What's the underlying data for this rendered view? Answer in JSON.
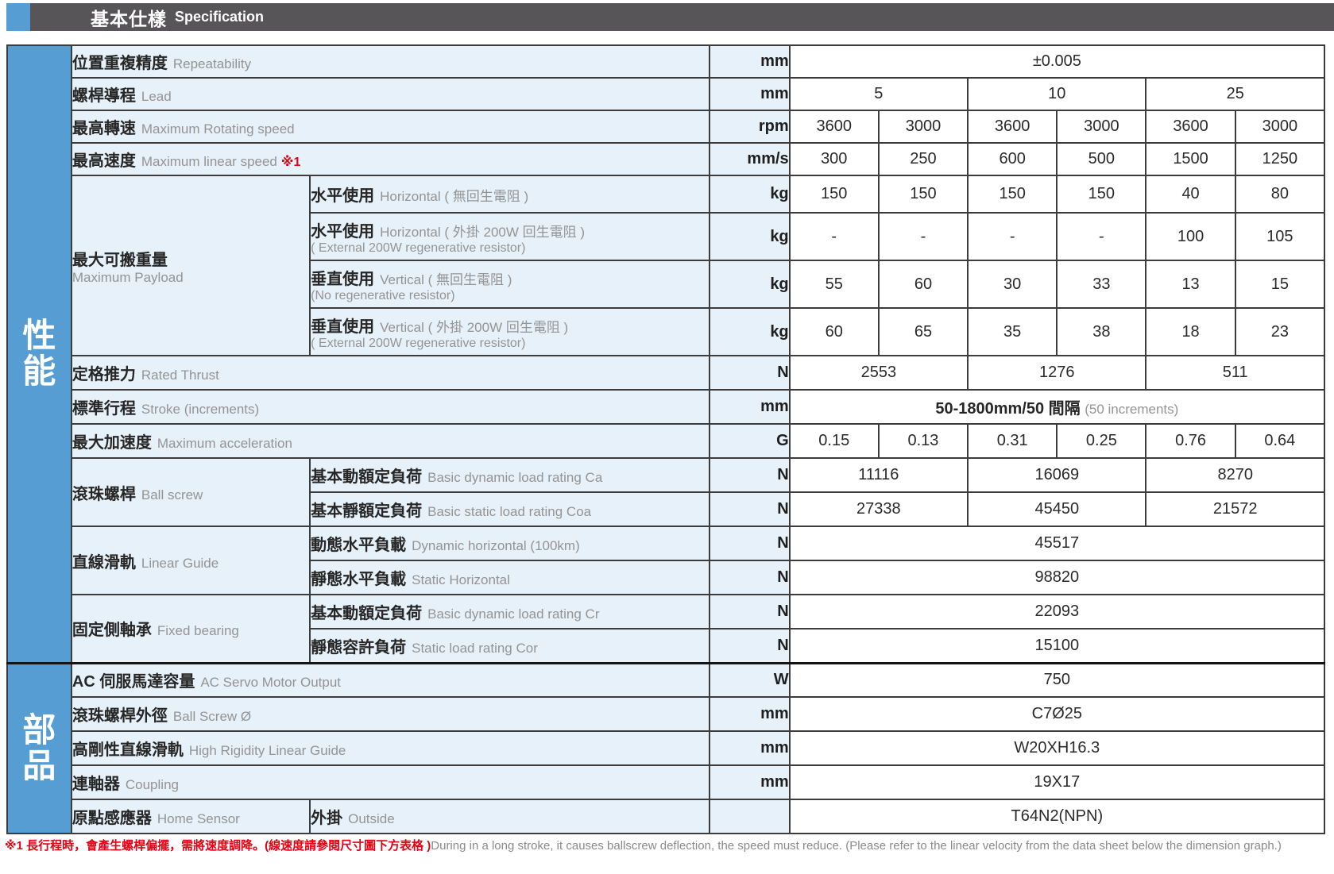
{
  "header": {
    "title_zh": "基本仕樣",
    "title_en": "Specification"
  },
  "side": {
    "performance": "性能",
    "parts": "部品"
  },
  "rows": {
    "repeatability": {
      "zh": "位置重複精度",
      "en": "Repeatability",
      "unit": "mm",
      "value": "±0.005"
    },
    "lead": {
      "zh": "螺桿導程",
      "en": "Lead",
      "unit": "mm",
      "values": [
        "5",
        "10",
        "25"
      ]
    },
    "max_rpm": {
      "zh": "最高轉速",
      "en": "Maximum Rotating speed",
      "unit": "rpm",
      "values": [
        "3600",
        "3000",
        "3600",
        "3000",
        "3600",
        "3000"
      ]
    },
    "max_speed": {
      "zh": "最高速度",
      "en": "Maximum linear speed",
      "note": "※1",
      "unit": "mm/s",
      "values": [
        "300",
        "250",
        "600",
        "500",
        "1500",
        "1250"
      ]
    },
    "payload": {
      "zh": "最大可搬重量",
      "en": "Maximum Payload",
      "sub": [
        {
          "zh": "水平使用",
          "en": "Horizontal ( 無回生電阻 )",
          "en2": "",
          "unit": "kg",
          "values": [
            "150",
            "150",
            "150",
            "150",
            "40",
            "80"
          ]
        },
        {
          "zh": "水平使用",
          "en": "Horizontal ( 外掛 200W 回生電阻 )",
          "en2": "( External 200W regenerative resistor)",
          "unit": "kg",
          "values": [
            "-",
            "-",
            "-",
            "-",
            "100",
            "105"
          ]
        },
        {
          "zh": "垂直使用",
          "en": "Vertical ( 無回生電阻 )",
          "en2": "(No regenerative resistor)",
          "unit": "kg",
          "values": [
            "55",
            "60",
            "30",
            "33",
            "13",
            "15"
          ]
        },
        {
          "zh": "垂直使用",
          "en": "Vertical ( 外掛 200W 回生電阻 )",
          "en2": "( External 200W regenerative resistor)",
          "unit": "kg",
          "values": [
            "60",
            "65",
            "35",
            "38",
            "18",
            "23"
          ]
        }
      ]
    },
    "rated_thrust": {
      "zh": "定格推力",
      "en": "Rated Thrust",
      "unit": "N",
      "values": [
        "2553",
        "1276",
        "511"
      ]
    },
    "stroke": {
      "zh": "標準行程",
      "en": "Stroke (increments)",
      "unit": "mm",
      "value_main": "50-1800mm/50 間隔",
      "value_sub": "(50 increments)"
    },
    "max_accel": {
      "zh": "最大加速度",
      "en": "Maximum acceleration",
      "unit": "G",
      "values": [
        "0.15",
        "0.13",
        "0.31",
        "0.25",
        "0.76",
        "0.64"
      ]
    },
    "ball_screw": {
      "zh": "滾珠螺桿",
      "en": "Ball screw",
      "sub": [
        {
          "zh": "基本動額定負荷",
          "en": "Basic dynamic load rating Ca",
          "unit": "N",
          "values": [
            "11116",
            "16069",
            "8270"
          ]
        },
        {
          "zh": "基本靜額定負荷",
          "en": "Basic static load rating Coa",
          "unit": "N",
          "values": [
            "27338",
            "45450",
            "21572"
          ]
        }
      ]
    },
    "linear_guide": {
      "zh": "直線滑軌",
      "en": "Linear Guide",
      "sub": [
        {
          "zh": "動態水平負載",
          "en": "Dynamic horizontal (100km)",
          "unit": "N",
          "value": "45517"
        },
        {
          "zh": "靜態水平負載",
          "en": "Static Horizontal",
          "unit": "N",
          "value": "98820"
        }
      ]
    },
    "fixed_bearing": {
      "zh": "固定側軸承",
      "en": "Fixed bearing",
      "sub": [
        {
          "zh": "基本動額定負荷",
          "en": "Basic dynamic load rating Cr",
          "unit": "N",
          "value": "22093"
        },
        {
          "zh": "靜態容許負荷",
          "en": "Static load rating Cor",
          "unit": "N",
          "value": "15100"
        }
      ]
    },
    "servo_output": {
      "zh": "AC 伺服馬達容量",
      "en": "AC Servo Motor Output",
      "unit": "W",
      "value": "750"
    },
    "screw_dia": {
      "zh": "滾珠螺桿外徑",
      "en": "Ball Screw Ø",
      "unit": "mm",
      "value": "C7Ø25"
    },
    "rigidity_guide": {
      "zh": "高剛性直線滑軌",
      "en": "High Rigidity Linear Guide",
      "unit": "mm",
      "value": "W20XH16.3"
    },
    "coupling": {
      "zh": "連軸器",
      "en": "Coupling",
      "unit": "mm",
      "value": "19X17"
    },
    "home_sensor": {
      "zh": "原點感應器",
      "en": "Home Sensor",
      "sub_zh": "外掛",
      "sub_en": "Outside",
      "unit": "",
      "value": "T64N2(NPN)"
    }
  },
  "footnote": {
    "red": "※1 長行程時，會產生螺桿偏擺，需將速度調降。(線速度請參閱尺寸圖下方表格 )",
    "gray": "During in a long stroke, it causes ballscrew deflection, the speed must reduce. (Please refer to the linear velocity from the data sheet below the dimension graph.)"
  },
  "colors": {
    "accent_blue": "#569dd4",
    "header_gray": "#575558",
    "cell_blue": "#e6f1f9",
    "note_red": "#e60012"
  }
}
